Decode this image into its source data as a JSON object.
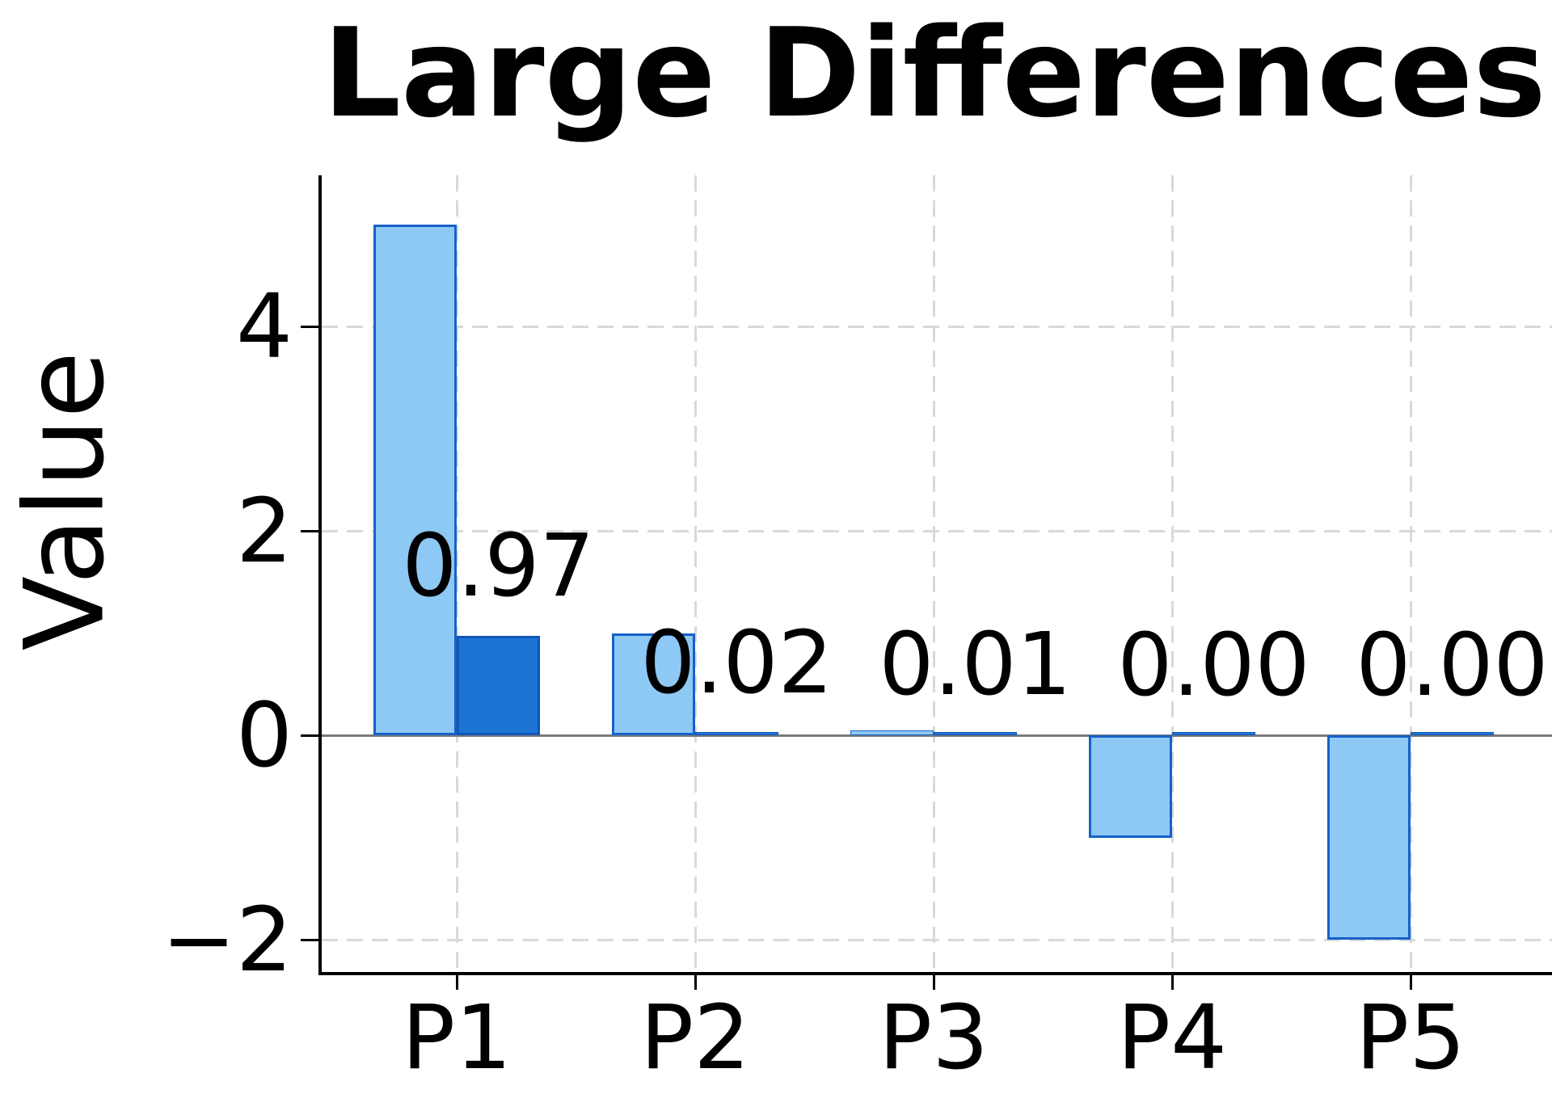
{
  "chart": {
    "title": "Large Differences",
    "ylabel": "Value"
  },
  "chart_data": {
    "type": "bar",
    "title": "Large Differences",
    "xlabel": "",
    "ylabel": "Value",
    "categories": [
      "P1",
      "P2",
      "P3",
      "P4",
      "P5"
    ],
    "series": [
      {
        "name": "light-blue-bars",
        "fill": "#8EC8F4",
        "edge": "#1661C9",
        "values": [
          5,
          1,
          0.05,
          -1,
          -2
        ]
      },
      {
        "name": "dark-blue-bars",
        "fill": "#1C75D3",
        "edge": "#1355B8",
        "values": [
          0.97,
          0.02,
          0.01,
          0.0,
          0.0
        ]
      }
    ],
    "bar_value_labels": {
      "series": "dark-blue-bars",
      "texts": [
        "0.97",
        "0.02",
        "0.01",
        "0.00",
        "0.00"
      ]
    },
    "yticks": [
      {
        "value": 4,
        "label": "4"
      },
      {
        "value": 2,
        "label": "2"
      },
      {
        "value": 0,
        "label": "0"
      },
      {
        "value": -2,
        "label": "−2"
      }
    ],
    "ylim": [
      -2.32,
      5.48
    ],
    "xlim_categories": "P1 to P5, grouped pairs centered on each category",
    "grid": {
      "shown": true,
      "style": "dashed",
      "color": "#D9D9D9"
    },
    "zero_line_color": "#7A7A7A",
    "axis_color": "#000000",
    "text_color": "#000000",
    "background": "#FFFFFF",
    "legend": false
  }
}
